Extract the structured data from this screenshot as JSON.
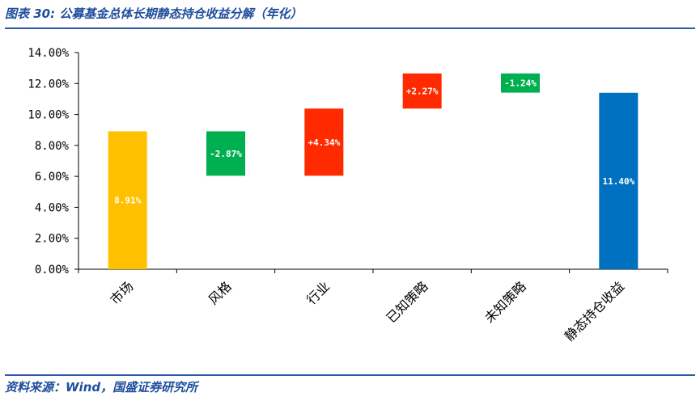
{
  "header": {
    "title": "图表 30:  公募基金总体长期静态持仓收益分解（年化）"
  },
  "footer": {
    "source": "资料来源：Wind，国盛证券研究所"
  },
  "chart_data": {
    "type": "bar",
    "subtype": "waterfall",
    "title": "",
    "xlabel": "",
    "ylabel": "",
    "ylim": [
      0,
      14
    ],
    "yticks": [
      "0.00%",
      "2.00%",
      "4.00%",
      "6.00%",
      "8.00%",
      "10.00%",
      "12.00%",
      "14.00%"
    ],
    "grid": false,
    "categories": [
      "市场",
      "风格",
      "行业",
      "已知策略",
      "未知策略",
      "静态持仓收益"
    ],
    "values": [
      8.91,
      -2.87,
      4.34,
      2.27,
      -1.24,
      11.4
    ],
    "bar_ranges": [
      [
        0,
        8.91
      ],
      [
        6.04,
        8.91
      ],
      [
        6.04,
        10.38
      ],
      [
        10.38,
        12.65
      ],
      [
        11.41,
        12.65
      ],
      [
        0,
        11.4
      ]
    ],
    "data_labels": [
      "8.91%",
      "-2.87%",
      "+4.34%",
      "+2.27%",
      "-1.24%",
      "11.40%"
    ],
    "colors": [
      "#FFC000",
      "#00B050",
      "#FF2A00",
      "#FF2A00",
      "#00B050",
      "#0070C0"
    ]
  }
}
